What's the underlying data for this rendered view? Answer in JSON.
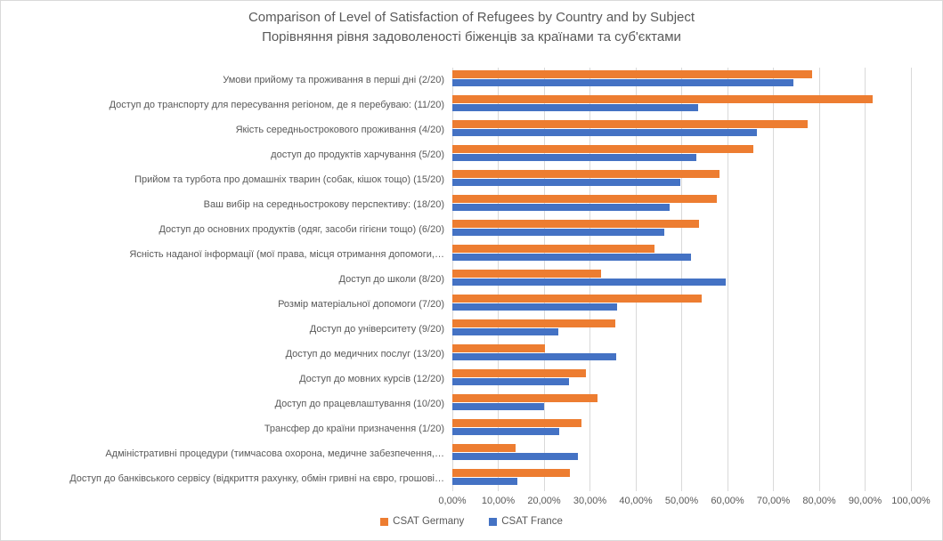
{
  "title": {
    "line1": "Comparison of Level of Satisfaction of Refugees by Country and by Subject",
    "line2": "Порівняння рівня задоволеності біженців за країнами та суб'єктами"
  },
  "colors": {
    "germany": "#ED7D31",
    "france": "#4472C4",
    "text": "#595959",
    "gridline": "#D9D9D9"
  },
  "legend": [
    {
      "label": "CSAT Germany",
      "color": "#ED7D31"
    },
    {
      "label": "CSAT France",
      "color": "#4472C4"
    }
  ],
  "chart_data": {
    "type": "bar",
    "orientation": "horizontal",
    "title": "Comparison of Level of Satisfaction of Refugees by Country and by Subject / Порівняння рівня задоволеності біженців за країнами та суб'єктами",
    "categories": [
      "Умови прийому та проживання в перші дні (2/20)",
      "Доступ до транспорту для пересування регіоном, де я перебуваю: (11/20)",
      "Якість середньострокового проживання (4/20)",
      "доступ до продуктів харчування (5/20)",
      "Прийом та турбота про домашніх тварин (собак, кішок тощо) (15/20)",
      "Ваш вибір на середньострокову перспективу: (18/20)",
      "Доступ до основних продуктів (одяг, засоби гігієни тощо) (6/20)",
      "Ясність наданої інформації (мої права, місця отримання допомоги,…",
      "Доступ до школи (8/20)",
      "Розмір матеріальної допомоги (7/20)",
      "Доступ до університету (9/20)",
      "Доступ до медичних послуг (13/20)",
      "Доступ до мовних курсів (12/20)",
      "Доступ до працевлаштування (10/20)",
      "Трансфер до країни призначення (1/20)",
      "Адміністративні процедури (тимчасова охорона, медичне забезпечення,…",
      "Доступ до банківського сервісу (відкриття рахунку, обмін гривні на євро, грошові…"
    ],
    "series": [
      {
        "name": "CSAT Germany",
        "color": "#ED7D31",
        "values": [
          78.5,
          91.6,
          77.5,
          65.7,
          58.3,
          57.7,
          53.8,
          44.0,
          32.4,
          54.3,
          35.6,
          20.2,
          29.1,
          31.7,
          28.1,
          13.7,
          25.6
        ]
      },
      {
        "name": "CSAT France",
        "color": "#4472C4",
        "values": [
          74.4,
          53.6,
          66.4,
          53.3,
          49.8,
          47.4,
          46.2,
          52.1,
          59.6,
          35.9,
          23.1,
          35.7,
          25.5,
          20.0,
          23.3,
          27.4,
          14.2
        ]
      }
    ],
    "x_ticks": [
      "0,00%",
      "10,00%",
      "20,00%",
      "30,00%",
      "40,00%",
      "50,00%",
      "60,00%",
      "70,00%",
      "80,00%",
      "90,00%",
      "100,00%"
    ],
    "xlim": [
      0,
      100
    ],
    "grid": "vertical",
    "legend_position": "bottom"
  }
}
